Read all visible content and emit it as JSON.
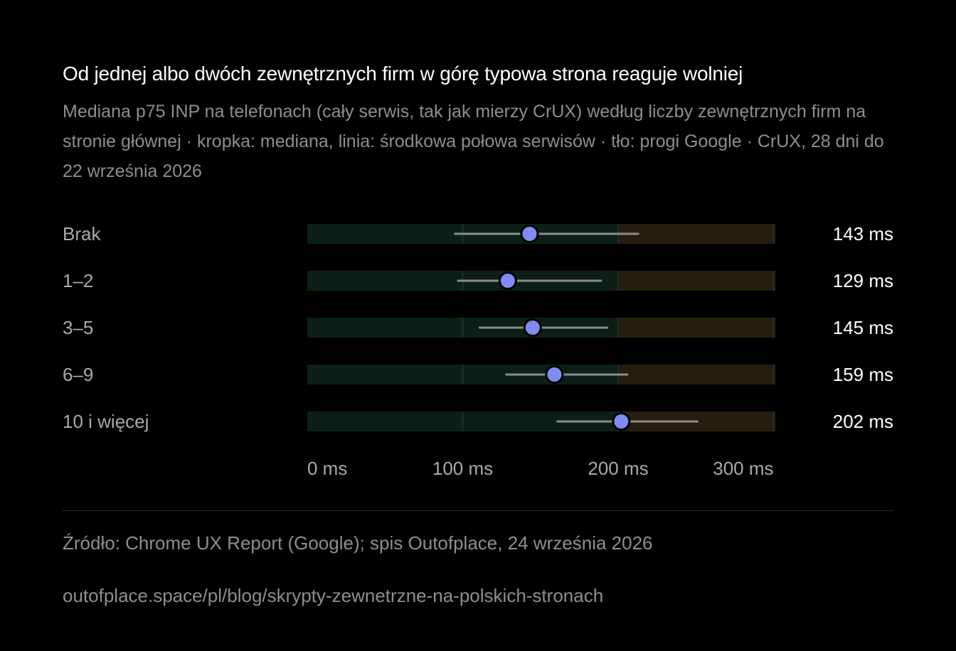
{
  "chart_data": {
    "type": "dot-range",
    "title": "Od jednej albo dwóch zewnętrznych firm w górę typowa strona reaguje wolniej",
    "subtitle": "Mediana p75 INP na telefonach (cały serwis, tak jak mierzy CrUX) według liczby zewnętrznych firm na stronie głównej · kropka: mediana, linia: środkowa połowa serwisów · tło: progi Google · CrUX, 28 dni do 22 września 2026",
    "xlim": [
      0,
      300
    ],
    "x_ticks": [
      0,
      100,
      200,
      300
    ],
    "x_tick_labels": [
      "0 ms",
      "100 ms",
      "200 ms",
      "300 ms"
    ],
    "threshold": 200,
    "categories": [
      "Brak",
      "1–2",
      "3–5",
      "6–9",
      "10 i więcej"
    ],
    "series": [
      {
        "median": [
          143,
          129,
          145,
          159,
          202
        ],
        "q1": [
          95,
          97,
          111,
          128,
          161
        ],
        "q3": [
          213,
          189,
          193,
          206,
          251
        ],
        "value_labels": [
          "143 ms",
          "129 ms",
          "145 ms",
          "159 ms",
          "202 ms"
        ]
      }
    ],
    "colors": {
      "good_band": "#0c1f17",
      "poor_band": "#251e0f",
      "gridline": "#23352c",
      "range_line": "#8c8c8c",
      "dot": "#7f8cf5",
      "dot_outline": "#000000"
    }
  },
  "footer": {
    "source": "Źródło: Chrome UX Report (Google); spis Outofplace, 24 września 2026",
    "url": "outofplace.space/pl/blog/skrypty-zewnetrzne-na-polskich-stronach"
  }
}
